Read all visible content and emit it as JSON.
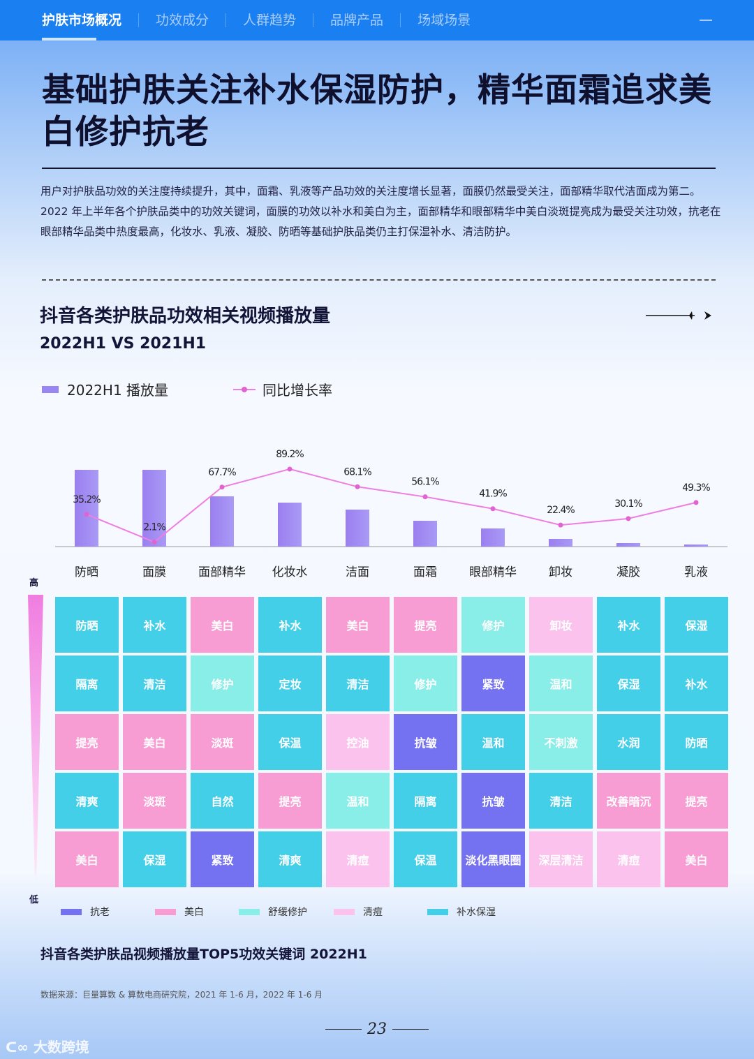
{
  "nav": {
    "tabs": [
      {
        "label": "护肤市场概况",
        "active": true
      },
      {
        "label": "功效成分"
      },
      {
        "label": "人群趋势"
      },
      {
        "label": "品牌产品"
      },
      {
        "label": "场域场景"
      }
    ],
    "menu_icon": "minus-icon"
  },
  "headline": "基础护肤关注补水保湿防护，精华面霜追求美白修护抗老",
  "intro": [
    "用户对护肤品功效的关注度持续提升，其中，面霜、乳液等产品功效的关注度增长显著，面膜仍然最受关注，面部精华取代洁面成为第二。",
    "2022 年上半年各个护肤品类中的功效关键词，面膜的功效以补水和美白为主，面部精华和眼部精华中美白淡斑提亮成为最受关注功效，抗老在眼部精华品类中热度最高，化妆水、乳液、凝胶、防晒等基础护肤品类仍主打保湿补水、清洁防护。"
  ],
  "chart_data": {
    "type": "bar+line",
    "title": "抖音各类护肤品功效相关视频播放量",
    "subtitle": "2022H1 VS 2021H1",
    "categories": [
      "防晒",
      "面膜",
      "面部精华",
      "化妆水",
      "洁面",
      "面霜",
      "眼部精华",
      "卸妆",
      "凝胶",
      "乳液"
    ],
    "series": [
      {
        "name": "2022H1 播放量",
        "type": "bar",
        "color": "#9a86f0",
        "values": [
          110,
          110,
          72,
          63,
          53,
          37,
          26,
          11,
          5,
          3
        ]
      },
      {
        "name": "同比增长率",
        "type": "line",
        "color": "#ee7fe0",
        "values": [
          35.2,
          2.1,
          67.7,
          89.2,
          68.1,
          56.1,
          41.9,
          22.4,
          30.1,
          49.3
        ],
        "labels": [
          "35.2%",
          "2.1%",
          "67.7%",
          "89.2%",
          "68.1%",
          "56.1%",
          "41.9%",
          "22.4%",
          "30.1%",
          "49.3%"
        ]
      }
    ],
    "legend_position": "top-left",
    "grid": false
  },
  "keywords": {
    "high_label": "高",
    "low_label": "低",
    "colors": {
      "抗老": "#7572f2",
      "美白": "#f89cd4",
      "舒缓修护": "#8aeee8",
      "清痘": "#fcc2ee",
      "补水保湿": "#44cfe8"
    },
    "legend": [
      "抗老",
      "美白",
      "舒缓修护",
      "清痘",
      "补水保湿"
    ],
    "columns": [
      [
        [
          "防晒",
          "补水保湿"
        ],
        [
          "隔离",
          "补水保湿"
        ],
        [
          "提亮",
          "美白"
        ],
        [
          "清爽",
          "补水保湿"
        ],
        [
          "美白",
          "美白"
        ]
      ],
      [
        [
          "补水",
          "补水保湿"
        ],
        [
          "清洁",
          "补水保湿"
        ],
        [
          "美白",
          "美白"
        ],
        [
          "淡斑",
          "美白"
        ],
        [
          "保湿",
          "补水保湿"
        ]
      ],
      [
        [
          "美白",
          "美白"
        ],
        [
          "修护",
          "舒缓修护"
        ],
        [
          "淡斑",
          "美白"
        ],
        [
          "自然",
          "补水保湿"
        ],
        [
          "紧致",
          "抗老"
        ]
      ],
      [
        [
          "补水",
          "补水保湿"
        ],
        [
          "定妆",
          "补水保湿"
        ],
        [
          "保温",
          "补水保湿"
        ],
        [
          "提亮",
          "美白"
        ],
        [
          "清爽",
          "补水保湿"
        ]
      ],
      [
        [
          "美白",
          "美白"
        ],
        [
          "清洁",
          "补水保湿"
        ],
        [
          "控油",
          "清痘"
        ],
        [
          "温和",
          "舒缓修护"
        ],
        [
          "清痘",
          "清痘"
        ]
      ],
      [
        [
          "提亮",
          "美白"
        ],
        [
          "修护",
          "舒缓修护"
        ],
        [
          "抗皱",
          "抗老"
        ],
        [
          "隔离",
          "补水保湿"
        ],
        [
          "保温",
          "补水保湿"
        ]
      ],
      [
        [
          "修护",
          "舒缓修护"
        ],
        [
          "紧致",
          "抗老"
        ],
        [
          "温和",
          "补水保湿"
        ],
        [
          "抗皱",
          "抗老"
        ],
        [
          "淡化黑眼圈",
          "抗老"
        ]
      ],
      [
        [
          "卸妆",
          "清痘"
        ],
        [
          "温和",
          "舒缓修护"
        ],
        [
          "不刺激",
          "舒缓修护"
        ],
        [
          "清洁",
          "补水保湿"
        ],
        [
          "深层清洁",
          "清痘"
        ]
      ],
      [
        [
          "补水",
          "补水保湿"
        ],
        [
          "保湿",
          "补水保湿"
        ],
        [
          "水润",
          "补水保湿"
        ],
        [
          "改善暗沉",
          "美白"
        ],
        [
          "清痘",
          "清痘"
        ]
      ],
      [
        [
          "保湿",
          "补水保湿"
        ],
        [
          "补水",
          "补水保湿"
        ],
        [
          "防晒",
          "补水保湿"
        ],
        [
          "提亮",
          "美白"
        ],
        [
          "美白",
          "美白"
        ]
      ]
    ],
    "title": "抖音各类护肤品视频播放量TOP5功效关键词 2022H1"
  },
  "source": "数据来源：巨量算数 & 算数电商研究院，2021 年 1-6 月，2022 年 1-6 月",
  "page_number": "23",
  "watermark": "大数跨境"
}
